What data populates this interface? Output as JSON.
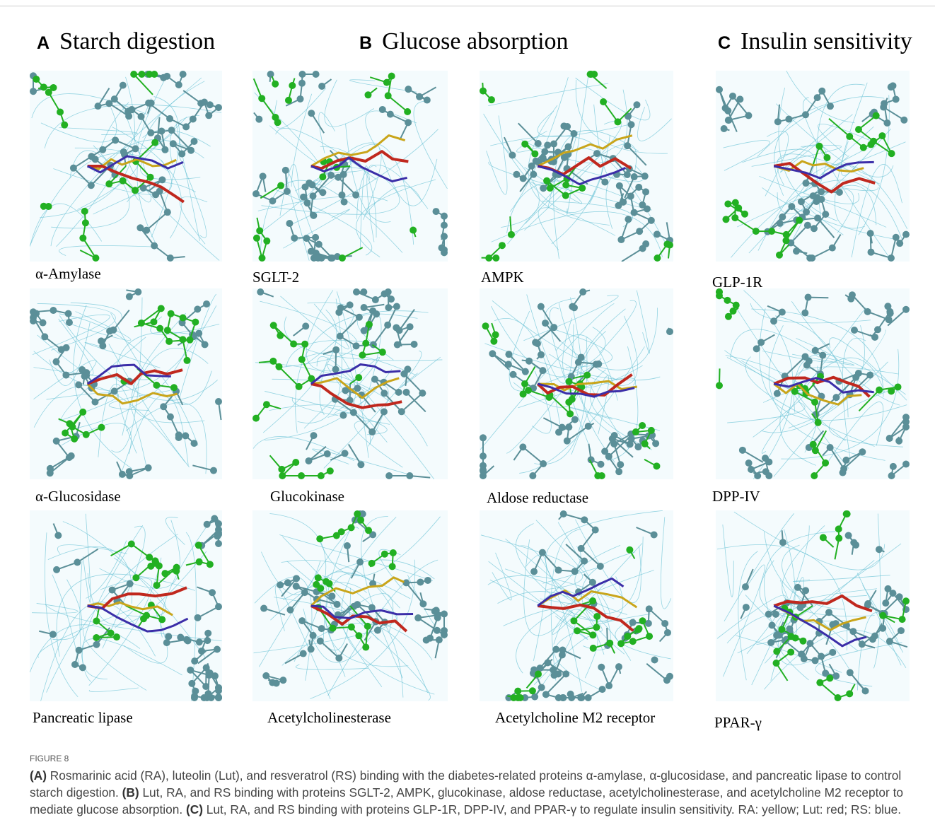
{
  "panels": [
    {
      "letter": "A",
      "title": "Starch digestion"
    },
    {
      "letter": "B",
      "title": "Glucose absorption"
    },
    {
      "letter": "C",
      "title": "Insulin sensitivity"
    }
  ],
  "grid": {
    "rows": [
      [
        "α-Amylase",
        "SGLT-2",
        "AMPK",
        "GLP-1R"
      ],
      [
        "α-Glucosidase",
        "Glucokinase",
        "Aldose reductase",
        "DPP-IV"
      ],
      [
        "Pancreatic lipase",
        "Acetylcholinesterase",
        "Acetylcholine M2 receptor",
        "PPAR-γ"
      ]
    ]
  },
  "caption": {
    "label": "FIGURE 8",
    "parts": [
      {
        "marker": "(A)",
        "text": " Rosmarinic acid (RA), luteolin (Lut), and resveratrol (RS) binding with the diabetes-related proteins α-amylase, α-glucosidase, and pancreatic lipase to control starch digestion. "
      },
      {
        "marker": "(B)",
        "text": " Lut, RA, and RS binding with proteins SGLT-2, AMPK, glucokinase, aldose reductase, acetylcholinesterase, and acetylcholine M2 receptor to mediate glucose absorption. "
      },
      {
        "marker": "(C)",
        "text": " Lut, RA, and RS binding with proteins GLP-1R, DPP-IV, and PPAR-γ to regulate insulin sensitivity. RA: yellow; Lut: red; RS: blue."
      }
    ]
  }
}
